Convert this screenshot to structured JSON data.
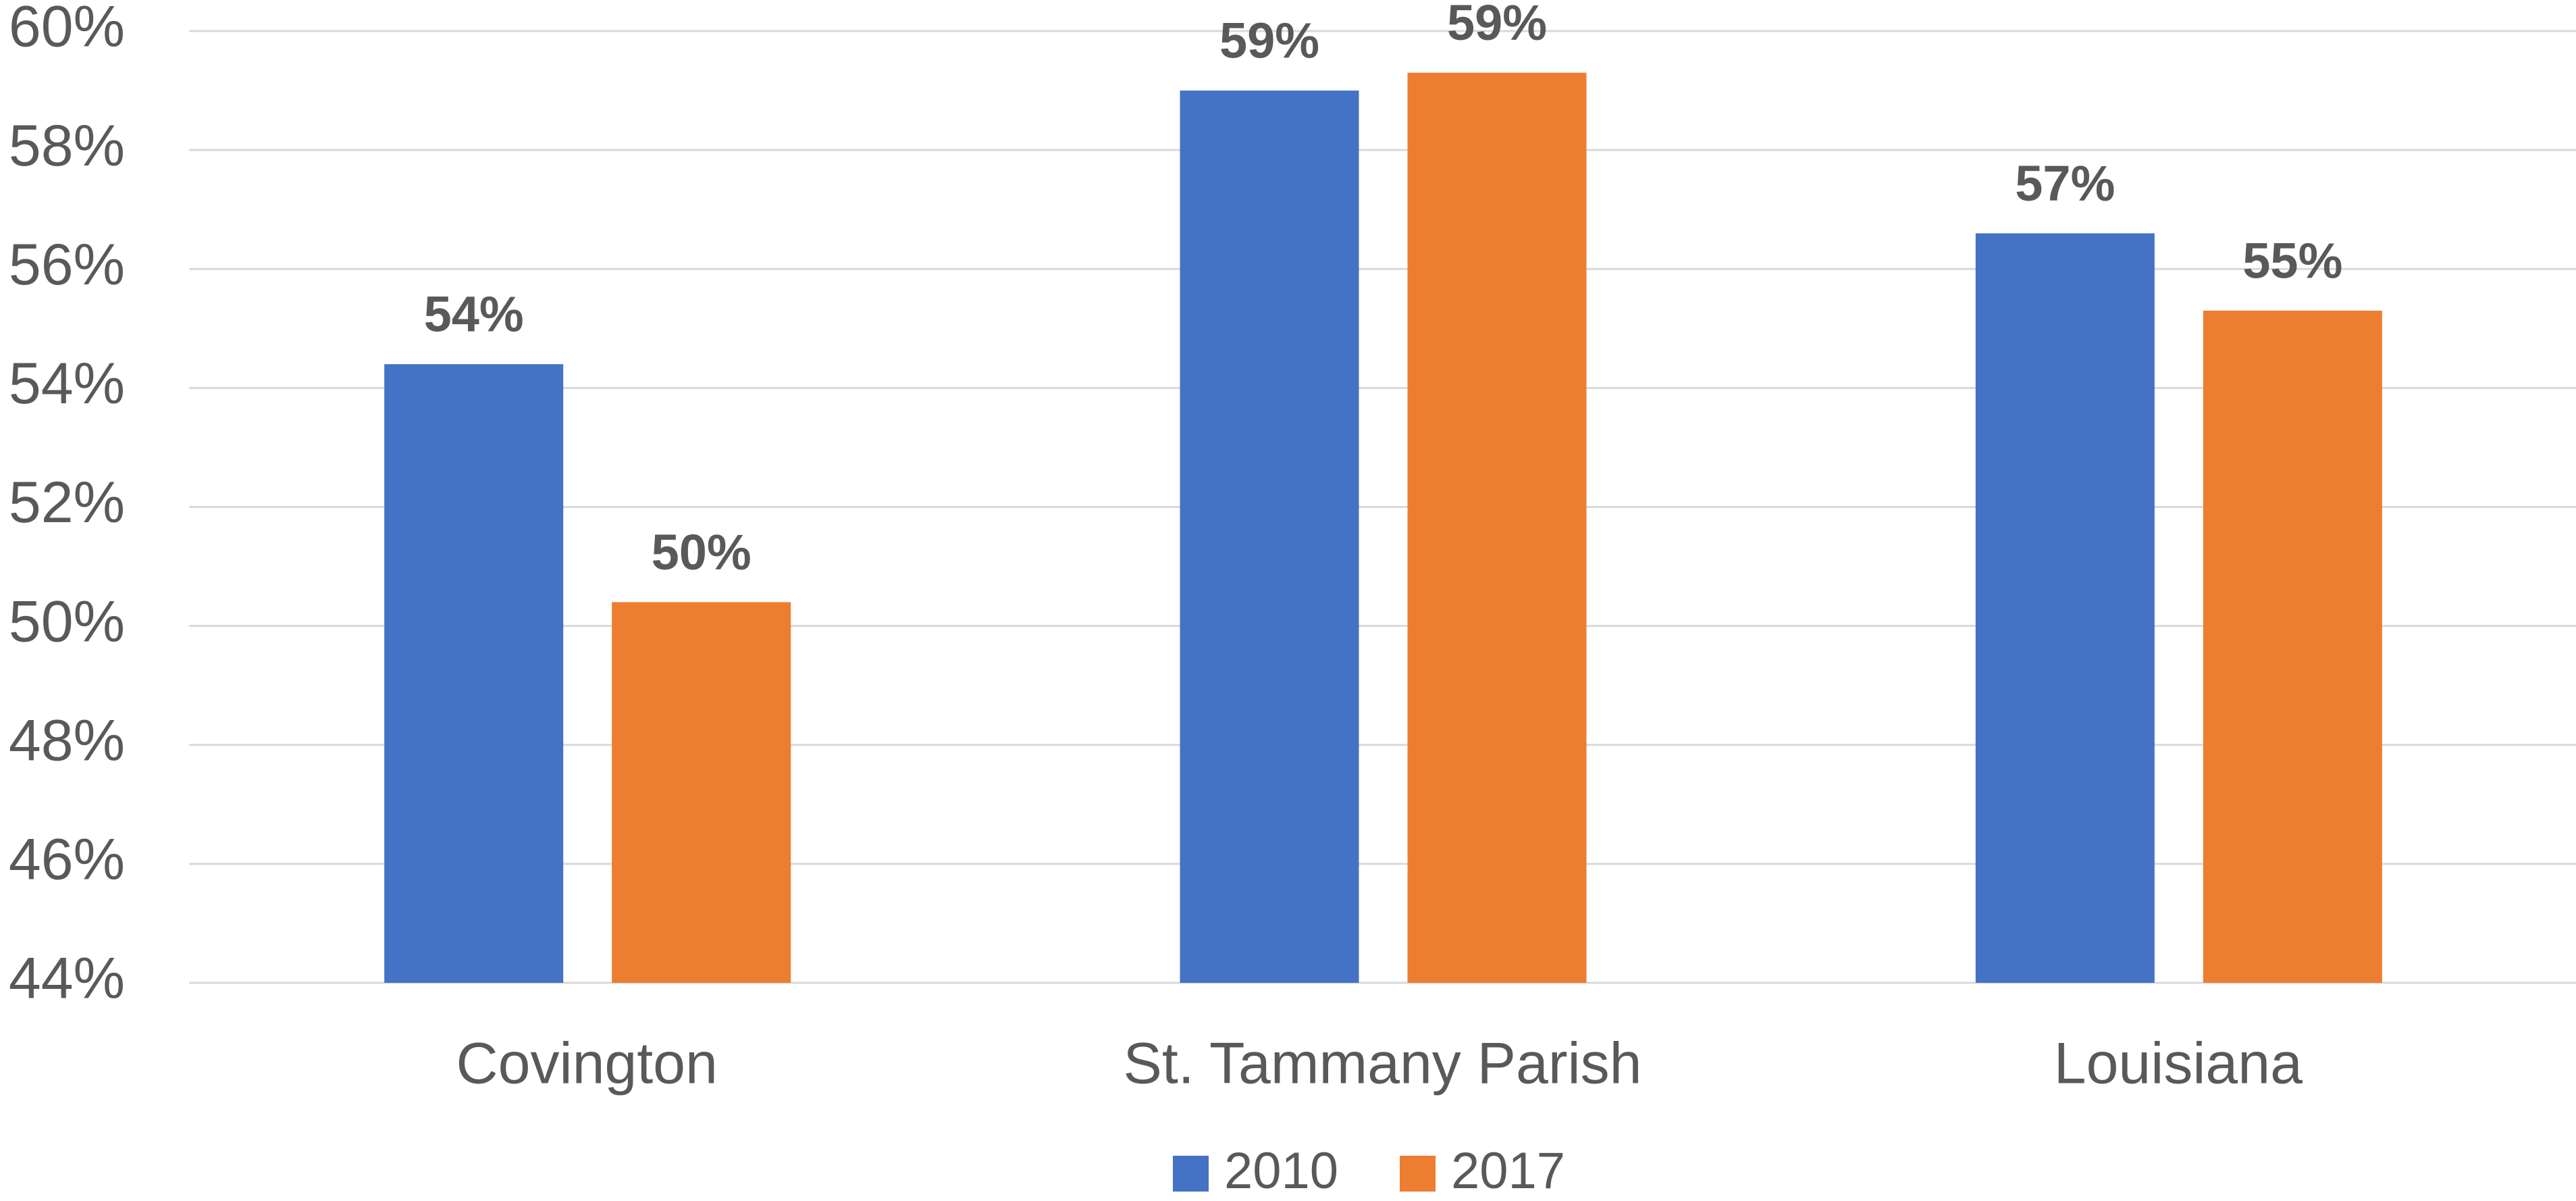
{
  "chart_data": {
    "type": "bar",
    "categories": [
      "Covington",
      "St. Tammany Parish",
      "Louisiana"
    ],
    "series": [
      {
        "name": "2010",
        "color": "#4472c4",
        "values": [
          54.4,
          59.0,
          56.6
        ],
        "value_labels": [
          "54%",
          "59%",
          "57%"
        ]
      },
      {
        "name": "2017",
        "color": "#ed7d31",
        "values": [
          50.4,
          59.3,
          55.3
        ],
        "value_labels": [
          "50%",
          "59%",
          "55%"
        ]
      }
    ],
    "ylim": [
      44,
      60
    ],
    "yticks": [
      {
        "value": 44,
        "label": "44%"
      },
      {
        "value": 46,
        "label": "46%"
      },
      {
        "value": 48,
        "label": "48%"
      },
      {
        "value": 50,
        "label": "50%"
      },
      {
        "value": 52,
        "label": "52%"
      },
      {
        "value": 54,
        "label": "54%"
      },
      {
        "value": 56,
        "label": "56%"
      },
      {
        "value": 58,
        "label": "58%"
      },
      {
        "value": 60,
        "label": "60%"
      }
    ],
    "grid": true,
    "legend": "bottom"
  }
}
